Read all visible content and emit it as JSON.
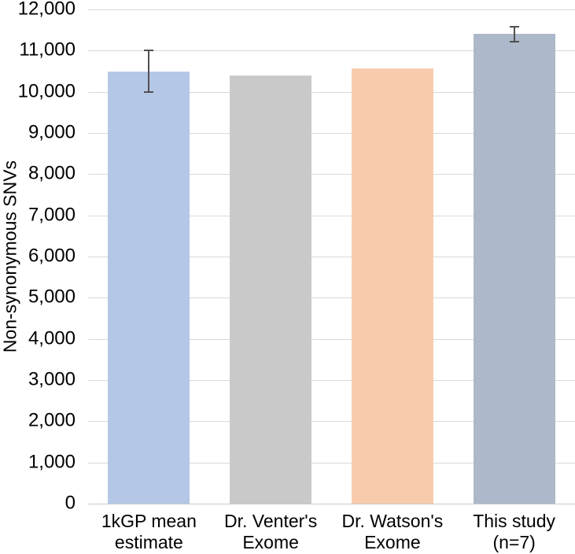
{
  "chart_data": {
    "type": "bar",
    "title": "",
    "xlabel": "",
    "ylabel": "Non-synonymous SNVs",
    "categories": [
      "1kGP mean estimate",
      "Dr. Venter's Exome",
      "Dr. Watson's Exome",
      "This study (n=7)"
    ],
    "values": [
      10500,
      10400,
      10570,
      11400
    ],
    "errors": [
      500,
      null,
      null,
      180
    ],
    "ylim": [
      0,
      12000
    ],
    "ytick_step": 1000,
    "ytick_labels": [
      "0",
      "1,000",
      "2,000",
      "3,000",
      "4,000",
      "5,000",
      "6,000",
      "7,000",
      "8,000",
      "9,000",
      "10,000",
      "11,000",
      "12,000"
    ],
    "grid": true,
    "legend": false,
    "bar_colors": [
      "#B4C7E7",
      "#C9C9C9",
      "#F8CBAD",
      "#ADB9CA"
    ],
    "gridline_color": "#D9D9D9",
    "axis_line_color": "#C9C9C9",
    "error_bar_color": "#505050",
    "text_color": "#000000",
    "background_color": "#FFFFFF"
  }
}
